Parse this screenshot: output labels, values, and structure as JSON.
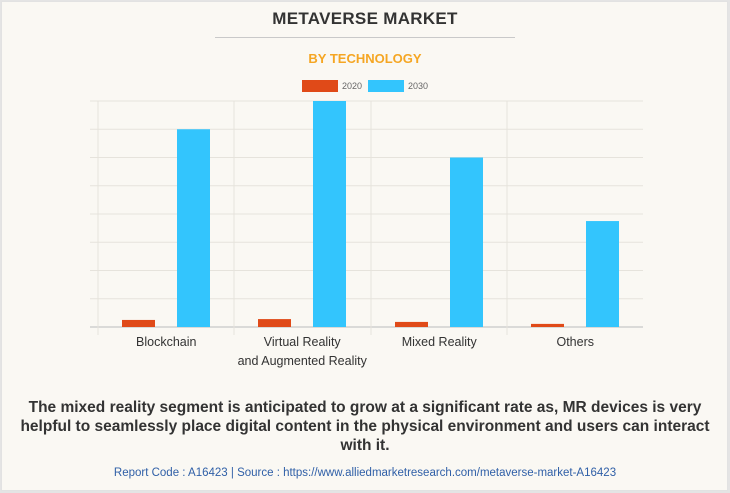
{
  "header": {
    "title": "METAVERSE MARKET",
    "subtitle": "BY TECHNOLOGY"
  },
  "legend": [
    {
      "label": "2020",
      "color": "#e04a18"
    },
    {
      "label": "2030",
      "color": "#33c5fd"
    }
  ],
  "chart_data": {
    "type": "bar",
    "title": "METAVERSE MARKET",
    "subtitle": "BY TECHNOLOGY",
    "xlabel": "",
    "ylabel": "",
    "categories": [
      "Blockchain",
      "Virtual Reality\nand Augmented Reality",
      "Mixed Reality",
      "Others"
    ],
    "category_lines": [
      [
        "Blockchain"
      ],
      [
        "Virtual Reality",
        "and Augmented Reality"
      ],
      [
        "Mixed Reality"
      ],
      [
        "Others"
      ]
    ],
    "series": [
      {
        "name": "2020",
        "color": "#e04a18",
        "values": [
          0.25,
          0.28,
          0.18,
          0.11
        ]
      },
      {
        "name": "2030",
        "color": "#33c5fd",
        "values": [
          7.0,
          8.0,
          6.0,
          3.75
        ]
      }
    ],
    "ylim": [
      0,
      8
    ],
    "y_gridlines": 8,
    "y_tick_labels_shown": false,
    "grid": true,
    "legend_position": "top-center"
  },
  "caption": "The mixed reality segment is anticipated to grow at a significant rate as, MR devices is very helpful to seamlessly place digital content in the physical environment and users can interact with it.",
  "source": "Report Code : A16423  |  Source : https://www.alliedmarketresearch.com/metaverse-market-A16423"
}
